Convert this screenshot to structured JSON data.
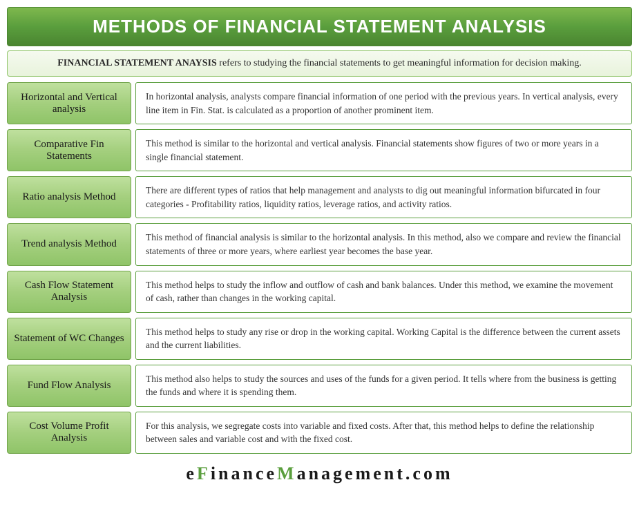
{
  "title": "METHODS OF FINANCIAL STATEMENT ANALYSIS",
  "intro_bold": "FINANCIAL STATEMENT ANAYSIS",
  "intro_rest": " refers to studying the financial statements to get meaningful information for decision making.",
  "methods": [
    {
      "label": "Horizontal and Vertical analysis",
      "desc": "In horizontal analysis, analysts compare financial information of one period with the previous years. In vertical analysis, every line item in Fin. Stat. is calculated as a proportion of another prominent item."
    },
    {
      "label": "Comparative Fin Statements",
      "desc": "This method is similar to the horizontal and vertical analysis.  Financial statements show figures of two or more years in a single financial statement."
    },
    {
      "label": "Ratio analysis Method",
      "desc": "There are different types of ratios that help management and analysts to dig out meaningful information bifurcated in four categories - Profitability ratios, liquidity ratios, leverage ratios, and activity ratios."
    },
    {
      "label": "Trend analysis Method",
      "desc": "This method of financial analysis is similar to the horizontal analysis. In this method, also we compare and review the financial statements of three or more years, where earliest year becomes the base year."
    },
    {
      "label": "Cash Flow Statement Analysis",
      "desc": "This method helps to study the inflow and outflow of cash and bank balances. Under this method, we examine the movement of cash, rather than changes in the working capital."
    },
    {
      "label": "Statement of WC Changes",
      "desc": "This method helps to study any rise or drop in the working capital. Working Capital is the difference between the current assets and the current liabilities."
    },
    {
      "label": "Fund Flow Analysis",
      "desc": "This method also helps to study the sources and uses of the funds for a given period. It tells where from the business is getting the funds and where it is spending them."
    },
    {
      "label": "Cost Volume Profit Analysis",
      "desc": "For this analysis, we segregate costs into variable and fixed costs. After that, this method helps to define the relationship between sales and variable cost and with the fixed cost."
    }
  ],
  "footer": {
    "p1": "e",
    "a1": "F",
    "p2": "inance",
    "a2": "M",
    "p3": "anagement.com"
  },
  "colors": {
    "title_bg_top": "#7fb84e",
    "title_bg_bottom": "#4a8530",
    "label_bg_top": "#bfe09e",
    "label_bg_bottom": "#8fc468",
    "border_green": "#5a9e3d",
    "accent": "#5a9e3d"
  }
}
